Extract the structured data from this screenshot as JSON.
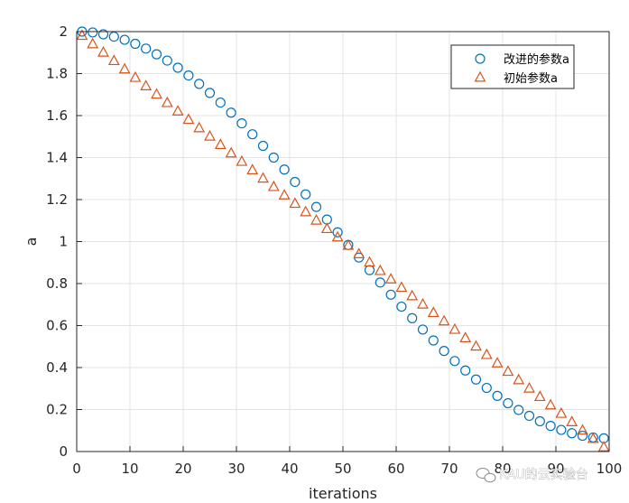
{
  "chart_data": {
    "type": "scatter",
    "xlabel": "iterations",
    "ylabel": "a",
    "xlim": [
      0,
      100
    ],
    "ylim": [
      0,
      2
    ],
    "xticks": [
      "0",
      "10",
      "20",
      "30",
      "40",
      "50",
      "60",
      "70",
      "80",
      "90",
      "100"
    ],
    "yticks": [
      "0",
      "0.2",
      "0.4",
      "0.6",
      "0.8",
      "1",
      "1.2",
      "1.4",
      "1.6",
      "1.8",
      "2"
    ],
    "grid": true,
    "legend_position": "top-right",
    "series": [
      {
        "name": "改进的参数a",
        "marker": "circle",
        "color": "#0072BD",
        "x": [
          1,
          3,
          5,
          7,
          9,
          11,
          13,
          15,
          17,
          19,
          21,
          23,
          25,
          27,
          29,
          31,
          33,
          35,
          37,
          39,
          41,
          43,
          45,
          47,
          49,
          51,
          53,
          55,
          57,
          59,
          61,
          63,
          65,
          67,
          69,
          71,
          73,
          75,
          77,
          79,
          81,
          83,
          85,
          87,
          89,
          91,
          93,
          95,
          97,
          99
        ],
        "y": [
          2.0,
          1.996,
          1.987,
          1.976,
          1.961,
          1.942,
          1.919,
          1.892,
          1.862,
          1.828,
          1.791,
          1.751,
          1.708,
          1.662,
          1.614,
          1.563,
          1.511,
          1.456,
          1.4,
          1.343,
          1.284,
          1.225,
          1.165,
          1.105,
          1.044,
          0.984,
          0.924,
          0.864,
          0.805,
          0.747,
          0.69,
          0.635,
          0.581,
          0.529,
          0.479,
          0.431,
          0.386,
          0.343,
          0.303,
          0.265,
          0.23,
          0.198,
          0.17,
          0.144,
          0.122,
          0.103,
          0.087,
          0.075,
          0.067,
          0.063
        ]
      },
      {
        "name": "初始参数a",
        "marker": "triangle",
        "color": "#D95319",
        "x": [
          1,
          3,
          5,
          7,
          9,
          11,
          13,
          15,
          17,
          19,
          21,
          23,
          25,
          27,
          29,
          31,
          33,
          35,
          37,
          39,
          41,
          43,
          45,
          47,
          49,
          51,
          53,
          55,
          57,
          59,
          61,
          63,
          65,
          67,
          69,
          71,
          73,
          75,
          77,
          79,
          81,
          83,
          85,
          87,
          89,
          91,
          93,
          95,
          97,
          99
        ],
        "y": [
          1.98,
          1.94,
          1.9,
          1.86,
          1.82,
          1.78,
          1.74,
          1.7,
          1.66,
          1.62,
          1.58,
          1.54,
          1.5,
          1.46,
          1.42,
          1.38,
          1.34,
          1.3,
          1.26,
          1.22,
          1.18,
          1.14,
          1.1,
          1.06,
          1.02,
          0.98,
          0.94,
          0.9,
          0.86,
          0.82,
          0.78,
          0.74,
          0.7,
          0.66,
          0.62,
          0.58,
          0.54,
          0.5,
          0.46,
          0.42,
          0.38,
          0.34,
          0.3,
          0.26,
          0.22,
          0.18,
          0.14,
          0.1,
          0.06,
          0.02
        ]
      }
    ]
  },
  "watermark": "KAU的云实验台",
  "watermark_icon": "wechat-icon"
}
